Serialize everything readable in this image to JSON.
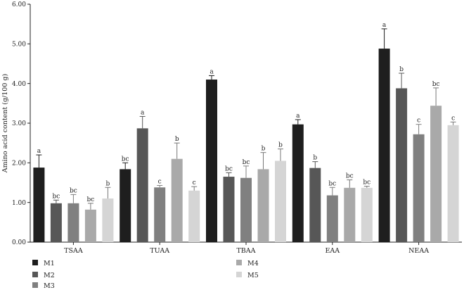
{
  "chart_data": {
    "type": "bar",
    "ylabel": "Amino acid content (g/100 g)",
    "ylim": [
      0,
      6
    ],
    "y_ticks": [
      "0.00",
      "1.00",
      "2.00",
      "3.00",
      "4.00",
      "5.00",
      "6.00"
    ],
    "grid": false,
    "legend_position": "bottom-left",
    "categories": [
      "TSAA",
      "TUAA",
      "TBAA",
      "EAA",
      "NEAA"
    ],
    "series": [
      {
        "name": "M1",
        "color": "#1e1e1e",
        "values": [
          1.88,
          1.84,
          4.1,
          2.97,
          4.88
        ],
        "errors": [
          0.32,
          0.16,
          0.1,
          0.12,
          0.5
        ],
        "labels": [
          "a",
          "bc",
          "a",
          "a",
          "a"
        ]
      },
      {
        "name": "M2",
        "color": "#575757",
        "values": [
          0.98,
          2.87,
          1.65,
          1.87,
          3.88
        ],
        "errors": [
          0.08,
          0.3,
          0.1,
          0.16,
          0.38
        ],
        "labels": [
          "bc",
          "a",
          "bc",
          "b",
          "b"
        ]
      },
      {
        "name": "M3",
        "color": "#808080",
        "values": [
          0.98,
          1.38,
          1.62,
          1.18,
          2.72
        ],
        "errors": [
          0.22,
          0.05,
          0.3,
          0.2,
          0.25
        ],
        "labels": [
          "bc",
          "c",
          "bc",
          "bc",
          "c"
        ]
      },
      {
        "name": "M4",
        "color": "#a9a9a9",
        "values": [
          0.82,
          2.1,
          1.84,
          1.37,
          3.44
        ],
        "errors": [
          0.16,
          0.4,
          0.42,
          0.2,
          0.45
        ],
        "labels": [
          "bc",
          "b",
          "b",
          "bc",
          "bc"
        ]
      },
      {
        "name": "M5",
        "color": "#d5d5d5",
        "values": [
          1.1,
          1.3,
          2.05,
          1.37,
          2.95
        ],
        "errors": [
          0.28,
          0.1,
          0.3,
          0.04,
          0.08
        ],
        "labels": [
          "b",
          "c",
          "b",
          "bc",
          "c"
        ]
      }
    ]
  }
}
